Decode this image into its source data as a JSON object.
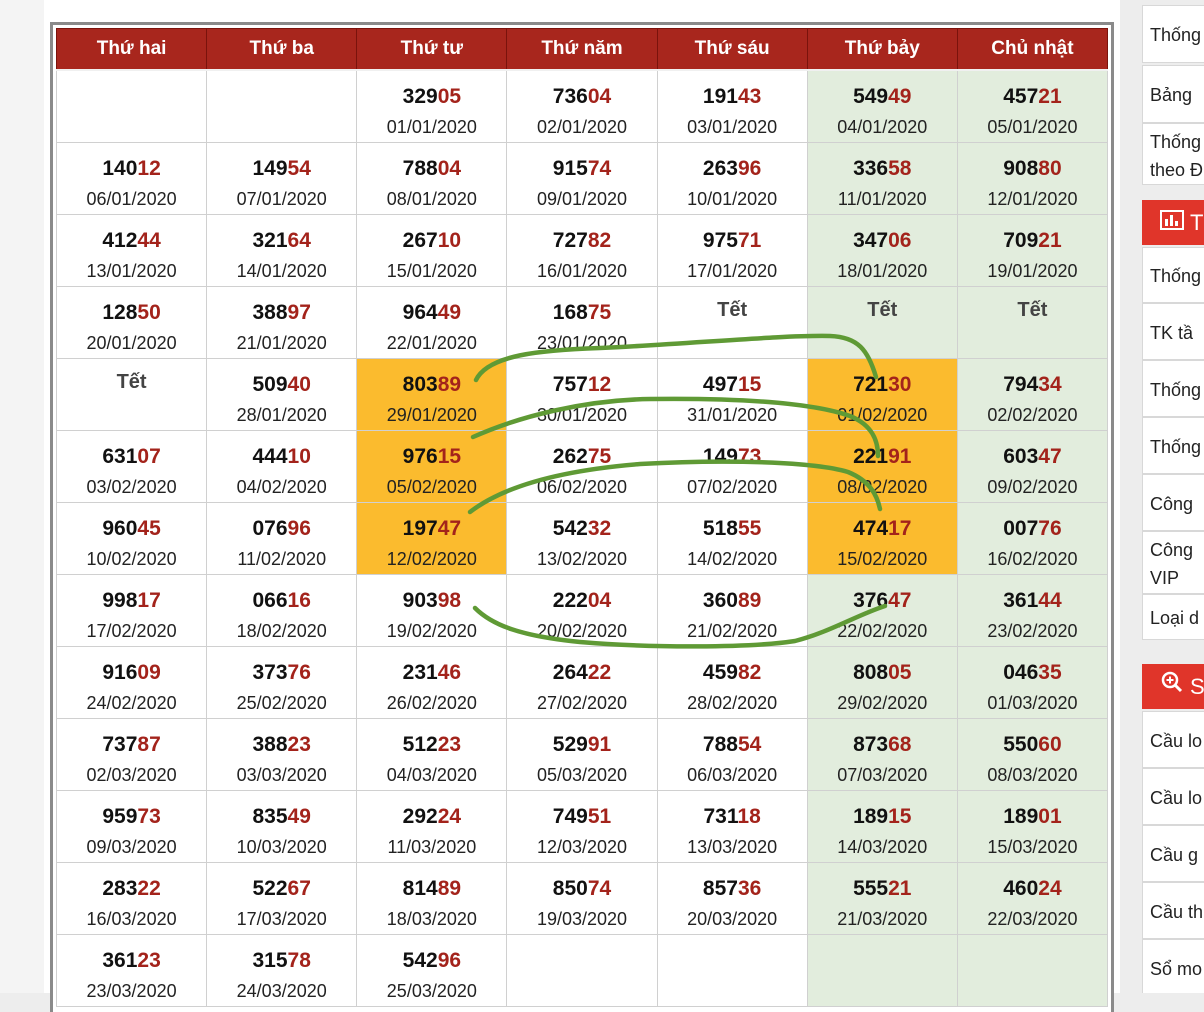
{
  "calendar": {
    "headers": [
      "Thứ hai",
      "Thứ ba",
      "Thứ tư",
      "Thứ năm",
      "Thứ sáu",
      "Thứ bảy",
      "Chủ nhật"
    ],
    "rows": [
      [
        null,
        null,
        {
          "head": "329",
          "tail": "05",
          "date": "01/01/2020"
        },
        {
          "head": "736",
          "tail": "04",
          "date": "02/01/2020"
        },
        {
          "head": "191",
          "tail": "43",
          "date": "03/01/2020"
        },
        {
          "head": "549",
          "tail": "49",
          "date": "04/01/2020"
        },
        {
          "head": "457",
          "tail": "21",
          "date": "05/01/2020"
        }
      ],
      [
        {
          "head": "140",
          "tail": "12",
          "date": "06/01/2020"
        },
        {
          "head": "149",
          "tail": "54",
          "date": "07/01/2020"
        },
        {
          "head": "788",
          "tail": "04",
          "date": "08/01/2020"
        },
        {
          "head": "915",
          "tail": "74",
          "date": "09/01/2020"
        },
        {
          "head": "263",
          "tail": "96",
          "date": "10/01/2020"
        },
        {
          "head": "336",
          "tail": "58",
          "date": "11/01/2020"
        },
        {
          "head": "908",
          "tail": "80",
          "date": "12/01/2020"
        }
      ],
      [
        {
          "head": "412",
          "tail": "44",
          "date": "13/01/2020"
        },
        {
          "head": "321",
          "tail": "64",
          "date": "14/01/2020"
        },
        {
          "head": "267",
          "tail": "10",
          "date": "15/01/2020"
        },
        {
          "head": "727",
          "tail": "82",
          "date": "16/01/2020"
        },
        {
          "head": "975",
          "tail": "71",
          "date": "17/01/2020"
        },
        {
          "head": "347",
          "tail": "06",
          "date": "18/01/2020"
        },
        {
          "head": "709",
          "tail": "21",
          "date": "19/01/2020"
        }
      ],
      [
        {
          "head": "128",
          "tail": "50",
          "date": "20/01/2020"
        },
        {
          "head": "388",
          "tail": "97",
          "date": "21/01/2020"
        },
        {
          "head": "964",
          "tail": "49",
          "date": "22/01/2020"
        },
        {
          "head": "168",
          "tail": "75",
          "date": "23/01/2020"
        },
        {
          "holiday": "Tết"
        },
        {
          "holiday": "Tết"
        },
        {
          "holiday": "Tết"
        }
      ],
      [
        {
          "holiday": "Tết"
        },
        {
          "head": "509",
          "tail": "40",
          "date": "28/01/2020"
        },
        {
          "head": "803",
          "tail": "89",
          "date": "29/01/2020",
          "hl": true
        },
        {
          "head": "757",
          "tail": "12",
          "date": "30/01/2020"
        },
        {
          "head": "497",
          "tail": "15",
          "date": "31/01/2020"
        },
        {
          "head": "721",
          "tail": "30",
          "date": "01/02/2020",
          "hl": true
        },
        {
          "head": "794",
          "tail": "34",
          "date": "02/02/2020"
        }
      ],
      [
        {
          "head": "631",
          "tail": "07",
          "date": "03/02/2020"
        },
        {
          "head": "444",
          "tail": "10",
          "date": "04/02/2020"
        },
        {
          "head": "976",
          "tail": "15",
          "date": "05/02/2020",
          "hl": true
        },
        {
          "head": "262",
          "tail": "75",
          "date": "06/02/2020"
        },
        {
          "head": "149",
          "tail": "73",
          "date": "07/02/2020"
        },
        {
          "head": "221",
          "tail": "91",
          "date": "08/02/2020",
          "hl": true
        },
        {
          "head": "603",
          "tail": "47",
          "date": "09/02/2020"
        }
      ],
      [
        {
          "head": "960",
          "tail": "45",
          "date": "10/02/2020"
        },
        {
          "head": "076",
          "tail": "96",
          "date": "11/02/2020"
        },
        {
          "head": "197",
          "tail": "47",
          "date": "12/02/2020",
          "hl": true
        },
        {
          "head": "542",
          "tail": "32",
          "date": "13/02/2020"
        },
        {
          "head": "518",
          "tail": "55",
          "date": "14/02/2020"
        },
        {
          "head": "474",
          "tail": "17",
          "date": "15/02/2020",
          "hl": true
        },
        {
          "head": "007",
          "tail": "76",
          "date": "16/02/2020"
        }
      ],
      [
        {
          "head": "998",
          "tail": "17",
          "date": "17/02/2020"
        },
        {
          "head": "066",
          "tail": "16",
          "date": "18/02/2020"
        },
        {
          "head": "903",
          "tail": "98",
          "date": "19/02/2020"
        },
        {
          "head": "222",
          "tail": "04",
          "date": "20/02/2020"
        },
        {
          "head": "360",
          "tail": "89",
          "date": "21/02/2020"
        },
        {
          "head": "376",
          "tail": "47",
          "date": "22/02/2020"
        },
        {
          "head": "361",
          "tail": "44",
          "date": "23/02/2020"
        }
      ],
      [
        {
          "head": "916",
          "tail": "09",
          "date": "24/02/2020"
        },
        {
          "head": "373",
          "tail": "76",
          "date": "25/02/2020"
        },
        {
          "head": "231",
          "tail": "46",
          "date": "26/02/2020"
        },
        {
          "head": "264",
          "tail": "22",
          "date": "27/02/2020"
        },
        {
          "head": "459",
          "tail": "82",
          "date": "28/02/2020"
        },
        {
          "head": "808",
          "tail": "05",
          "date": "29/02/2020"
        },
        {
          "head": "046",
          "tail": "35",
          "date": "01/03/2020"
        }
      ],
      [
        {
          "head": "737",
          "tail": "87",
          "date": "02/03/2020"
        },
        {
          "head": "388",
          "tail": "23",
          "date": "03/03/2020"
        },
        {
          "head": "512",
          "tail": "23",
          "date": "04/03/2020"
        },
        {
          "head": "529",
          "tail": "91",
          "date": "05/03/2020"
        },
        {
          "head": "788",
          "tail": "54",
          "date": "06/03/2020"
        },
        {
          "head": "873",
          "tail": "68",
          "date": "07/03/2020"
        },
        {
          "head": "550",
          "tail": "60",
          "date": "08/03/2020"
        }
      ],
      [
        {
          "head": "959",
          "tail": "73",
          "date": "09/03/2020"
        },
        {
          "head": "835",
          "tail": "49",
          "date": "10/03/2020"
        },
        {
          "head": "292",
          "tail": "24",
          "date": "11/03/2020"
        },
        {
          "head": "749",
          "tail": "51",
          "date": "12/03/2020"
        },
        {
          "head": "731",
          "tail": "18",
          "date": "13/03/2020"
        },
        {
          "head": "189",
          "tail": "15",
          "date": "14/03/2020"
        },
        {
          "head": "189",
          "tail": "01",
          "date": "15/03/2020"
        }
      ],
      [
        {
          "head": "283",
          "tail": "22",
          "date": "16/03/2020"
        },
        {
          "head": "522",
          "tail": "67",
          "date": "17/03/2020"
        },
        {
          "head": "814",
          "tail": "89",
          "date": "18/03/2020"
        },
        {
          "head": "850",
          "tail": "74",
          "date": "19/03/2020"
        },
        {
          "head": "857",
          "tail": "36",
          "date": "20/03/2020"
        },
        {
          "head": "555",
          "tail": "21",
          "date": "21/03/2020"
        },
        {
          "head": "460",
          "tail": "24",
          "date": "22/03/2020"
        }
      ],
      [
        {
          "head": "361",
          "tail": "23",
          "date": "23/03/2020"
        },
        {
          "head": "315",
          "tail": "78",
          "date": "24/03/2020"
        },
        {
          "head": "542",
          "tail": "96",
          "date": "25/03/2020"
        },
        null,
        null,
        null,
        null
      ]
    ]
  },
  "sidebar": {
    "group1": [
      "Thống",
      "Bảng",
      "Thống theo Đ"
    ],
    "header2": {
      "label": "T",
      "icon": "bar-chart-icon"
    },
    "group2": [
      "Thống",
      "TK tầ",
      "Thống",
      "Thống",
      "Công",
      "Công VIP",
      "Loại d"
    ],
    "header3": {
      "label": "S",
      "icon": "zoom-in-icon"
    },
    "group3": [
      "Cầu lo",
      "Cầu lo",
      "Cầu g",
      "Cầu th",
      "Sổ mo"
    ]
  },
  "colors": {
    "header_bg": "#a8261d",
    "tail_digits": "#a3231b",
    "weekend_bg": "#e2eddd",
    "highlight_bg": "#fbbb2e",
    "annotation_stroke": "#5f9a35",
    "sidebar_header_bg": "#e0352a"
  }
}
